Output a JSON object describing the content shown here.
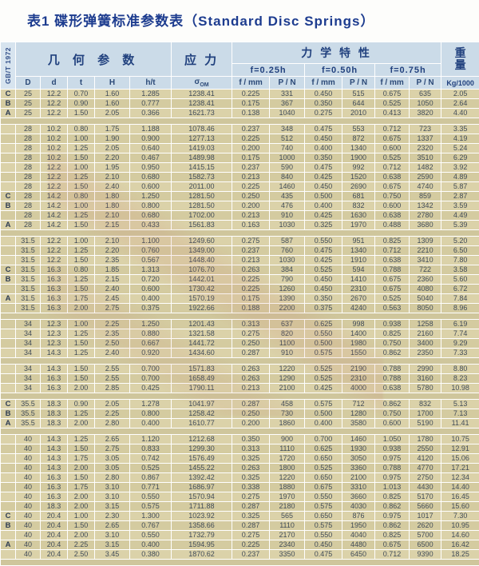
{
  "title": "表1  碟形弹簧标准参数表（Standard Disc Springs）",
  "standard": "GB/T 1972",
  "header": {
    "geometry": "几 何 参 数",
    "stress": "应 力",
    "mechanical": "力 学 特 性",
    "weight_top": "重",
    "weight_bottom": "量",
    "weight_unit": "Kg/1000",
    "deflections": [
      "f=0.25h",
      "f=0.50h",
      "f=0.75h"
    ],
    "sub": [
      "f / mm",
      "P / N"
    ],
    "cols": [
      "D",
      "d",
      "t",
      "H",
      "h/t"
    ],
    "stress_symbol": "σ",
    "stress_sub": "OM"
  },
  "table": {
    "groups": [
      {
        "rows": [
          [
            "C",
            "25",
            "12.2",
            "0.70",
            "1.60",
            "1.285",
            "1238.41",
            "0.225",
            "331",
            "0.450",
            "515",
            "0.675",
            "635",
            "2.05"
          ],
          [
            "B",
            "25",
            "12.2",
            "0.90",
            "1.60",
            "0.777",
            "1238.41",
            "0.175",
            "367",
            "0.350",
            "644",
            "0.525",
            "1050",
            "2.64"
          ],
          [
            "A",
            "25",
            "12.2",
            "1.50",
            "2.05",
            "0.366",
            "1621.73",
            "0.138",
            "1040",
            "0.275",
            "2010",
            "0.413",
            "3820",
            "4.40"
          ]
        ]
      },
      {
        "rows": [
          [
            "",
            "28",
            "10.2",
            "0.80",
            "1.75",
            "1.188",
            "1078.46",
            "0.237",
            "348",
            "0.475",
            "553",
            "0.712",
            "723",
            "3.35"
          ],
          [
            "",
            "28",
            "10.2",
            "1.00",
            "1.90",
            "0.900",
            "1277.13",
            "0.225",
            "512",
            "0.450",
            "872",
            "0.675",
            "1337",
            "4.19"
          ],
          [
            "",
            "28",
            "10.2",
            "1.25",
            "2.05",
            "0.640",
            "1419.03",
            "0.200",
            "740",
            "0.400",
            "1340",
            "0.600",
            "2320",
            "5.24"
          ],
          [
            "",
            "28",
            "10.2",
            "1.50",
            "2.20",
            "0.467",
            "1489.98",
            "0.175",
            "1000",
            "0.350",
            "1900",
            "0.525",
            "3510",
            "6.29"
          ],
          [
            "",
            "28",
            "12.2",
            "1.00",
            "1.95",
            "0.950",
            "1415.15",
            "0.237",
            "590",
            "0.475",
            "992",
            "0.712",
            "1482",
            "3.92"
          ],
          [
            "",
            "28",
            "12.2",
            "1.25",
            "2.10",
            "0.680",
            "1582.73",
            "0.213",
            "840",
            "0.425",
            "1520",
            "0.638",
            "2590",
            "4.89"
          ],
          [
            "",
            "28",
            "12.2",
            "1.50",
            "2.40",
            "0.600",
            "2011.00",
            "0.225",
            "1460",
            "0.450",
            "2690",
            "0.675",
            "4740",
            "5.87"
          ],
          [
            "C",
            "28",
            "14.2",
            "0.80",
            "1.80",
            "1.250",
            "1281.50",
            "0.250",
            "435",
            "0.500",
            "681",
            "0.750",
            "859",
            "2.87"
          ],
          [
            "B",
            "28",
            "14.2",
            "1.00",
            "1.80",
            "0.800",
            "1281.50",
            "0.200",
            "476",
            "0.400",
            "832",
            "0.600",
            "1342",
            "3.59"
          ],
          [
            "",
            "28",
            "14.2",
            "1.25",
            "2.10",
            "0.680",
            "1702.00",
            "0.213",
            "910",
            "0.425",
            "1630",
            "0.638",
            "2780",
            "4.49"
          ],
          [
            "A",
            "28",
            "14.2",
            "1.50",
            "2.15",
            "0.433",
            "1561.83",
            "0.163",
            "1030",
            "0.325",
            "1970",
            "0.488",
            "3680",
            "5.39"
          ]
        ]
      },
      {
        "rows": [
          [
            "",
            "31.5",
            "12.2",
            "1.00",
            "2.10",
            "1.100",
            "1249.60",
            "0.275",
            "587",
            "0.550",
            "951",
            "0.825",
            "1309",
            "5.20"
          ],
          [
            "",
            "31.5",
            "12.2",
            "1.25",
            "2.20",
            "0.760",
            "1349.00",
            "0.237",
            "760",
            "0.475",
            "1340",
            "0.712",
            "2210",
            "6.50"
          ],
          [
            "",
            "31.5",
            "12.2",
            "1.50",
            "2.35",
            "0.567",
            "1448.40",
            "0.213",
            "1030",
            "0.425",
            "1910",
            "0.638",
            "3410",
            "7.80"
          ],
          [
            "C",
            "31.5",
            "16.3",
            "0.80",
            "1.85",
            "1.313",
            "1076.70",
            "0.263",
            "384",
            "0.525",
            "594",
            "0.788",
            "722",
            "3.58"
          ],
          [
            "B",
            "31.5",
            "16.3",
            "1.25",
            "2.15",
            "0.720",
            "1442.01",
            "0.225",
            "790",
            "0.450",
            "1410",
            "0.675",
            "2360",
            "5.60"
          ],
          [
            "",
            "31.5",
            "16.3",
            "1.50",
            "2.40",
            "0.600",
            "1730.42",
            "0.225",
            "1260",
            "0.450",
            "2310",
            "0.675",
            "4080",
            "6.72"
          ],
          [
            "A",
            "31.5",
            "16.3",
            "1.75",
            "2.45",
            "0.400",
            "1570.19",
            "0.175",
            "1390",
            "0.350",
            "2670",
            "0.525",
            "5040",
            "7.84"
          ],
          [
            "",
            "31.5",
            "16.3",
            "2.00",
            "2.75",
            "0.375",
            "1922.66",
            "0.188",
            "2200",
            "0.375",
            "4240",
            "0.563",
            "8050",
            "8.96"
          ]
        ]
      },
      {
        "rows": [
          [
            "",
            "34",
            "12.3",
            "1.00",
            "2.25",
            "1.250",
            "1201.43",
            "0.313",
            "637",
            "0.625",
            "998",
            "0.938",
            "1258",
            "6.19"
          ],
          [
            "",
            "34",
            "12.3",
            "1.25",
            "2.35",
            "0.880",
            "1321.58",
            "0.275",
            "820",
            "0.550",
            "1400",
            "0.825",
            "2160",
            "7.74"
          ],
          [
            "",
            "34",
            "12.3",
            "1.50",
            "2.50",
            "0.667",
            "1441.72",
            "0.250",
            "1100",
            "0.500",
            "1980",
            "0.750",
            "3400",
            "9.29"
          ],
          [
            "",
            "34",
            "14.3",
            "1.25",
            "2.40",
            "0.920",
            "1434.60",
            "0.287",
            "910",
            "0.575",
            "1550",
            "0.862",
            "2350",
            "7.33"
          ]
        ]
      },
      {
        "rows": [
          [
            "",
            "34",
            "14.3",
            "1.50",
            "2.55",
            "0.700",
            "1571.83",
            "0.263",
            "1220",
            "0.525",
            "2190",
            "0.788",
            "2990",
            "8.80"
          ],
          [
            "",
            "34",
            "16.3",
            "1.50",
            "2.55",
            "0.700",
            "1658.49",
            "0.263",
            "1290",
            "0.525",
            "2310",
            "0.788",
            "3160",
            "8.23"
          ],
          [
            "",
            "34",
            "16.3",
            "2.00",
            "2.85",
            "0.425",
            "1790.11",
            "0.213",
            "2100",
            "0.425",
            "4000",
            "0.638",
            "5780",
            "10.98"
          ]
        ]
      },
      {
        "rows": [
          [
            "C",
            "35.5",
            "18.3",
            "0.90",
            "2.05",
            "1.278",
            "1041.97",
            "0.287",
            "458",
            "0.575",
            "712",
            "0.862",
            "832",
            "5.13"
          ],
          [
            "B",
            "35.5",
            "18.3",
            "1.25",
            "2.25",
            "0.800",
            "1258.42",
            "0.250",
            "730",
            "0.500",
            "1280",
            "0.750",
            "1700",
            "7.13"
          ],
          [
            "A",
            "35.5",
            "18.3",
            "2.00",
            "2.80",
            "0.400",
            "1610.77",
            "0.200",
            "1860",
            "0.400",
            "3580",
            "0.600",
            "5190",
            "11.41"
          ]
        ]
      },
      {
        "rows": [
          [
            "",
            "40",
            "14.3",
            "1.25",
            "2.65",
            "1.120",
            "1212.68",
            "0.350",
            "900",
            "0.700",
            "1460",
            "1.050",
            "1780",
            "10.75"
          ],
          [
            "",
            "40",
            "14.3",
            "1.50",
            "2.75",
            "0.833",
            "1299.30",
            "0.313",
            "1110",
            "0.625",
            "1930",
            "0.938",
            "2550",
            "12.91"
          ],
          [
            "",
            "40",
            "14.3",
            "1.75",
            "3.05",
            "0.742",
            "1576.49",
            "0.325",
            "1720",
            "0.650",
            "3050",
            "0.975",
            "4120",
            "15.06"
          ],
          [
            "",
            "40",
            "14.3",
            "2.00",
            "3.05",
            "0.525",
            "1455.22",
            "0.263",
            "1800",
            "0.525",
            "3360",
            "0.788",
            "4770",
            "17.21"
          ],
          [
            "",
            "40",
            "16.3",
            "1.50",
            "2.80",
            "0.867",
            "1392.42",
            "0.325",
            "1220",
            "0.650",
            "2100",
            "0.975",
            "2750",
            "12.34"
          ],
          [
            "",
            "40",
            "16.3",
            "1.75",
            "3.10",
            "0.771",
            "1686.97",
            "0.338",
            "1880",
            "0.675",
            "3310",
            "1.013",
            "4430",
            "14.40"
          ],
          [
            "",
            "40",
            "16.3",
            "2.00",
            "3.10",
            "0.550",
            "1570.94",
            "0.275",
            "1970",
            "0.550",
            "3660",
            "0.825",
            "5170",
            "16.45"
          ],
          [
            "",
            "40",
            "18.3",
            "2.00",
            "3.15",
            "0.575",
            "1711.88",
            "0.287",
            "2180",
            "0.575",
            "4030",
            "0.862",
            "5660",
            "15.60"
          ],
          [
            "C",
            "40",
            "20.4",
            "1.00",
            "2.30",
            "1.300",
            "1023.92",
            "0.325",
            "565",
            "0.650",
            "876",
            "0.975",
            "1017",
            "7.30"
          ],
          [
            "B",
            "40",
            "20.4",
            "1.50",
            "2.65",
            "0.767",
            "1358.66",
            "0.287",
            "1110",
            "0.575",
            "1950",
            "0.862",
            "2620",
            "10.95"
          ],
          [
            "",
            "40",
            "20.4",
            "2.00",
            "3.10",
            "0.550",
            "1732.79",
            "0.275",
            "2170",
            "0.550",
            "4040",
            "0.825",
            "5700",
            "14.60"
          ],
          [
            "A",
            "40",
            "20.4",
            "2.25",
            "3.15",
            "0.400",
            "1594.95",
            "0.225",
            "2340",
            "0.450",
            "4480",
            "0.675",
            "6500",
            "16.42"
          ],
          [
            "",
            "40",
            "20.4",
            "2.50",
            "3.45",
            "0.380",
            "1870.62",
            "0.237",
            "3350",
            "0.475",
            "6450",
            "0.712",
            "9390",
            "18.25"
          ]
        ]
      }
    ]
  }
}
